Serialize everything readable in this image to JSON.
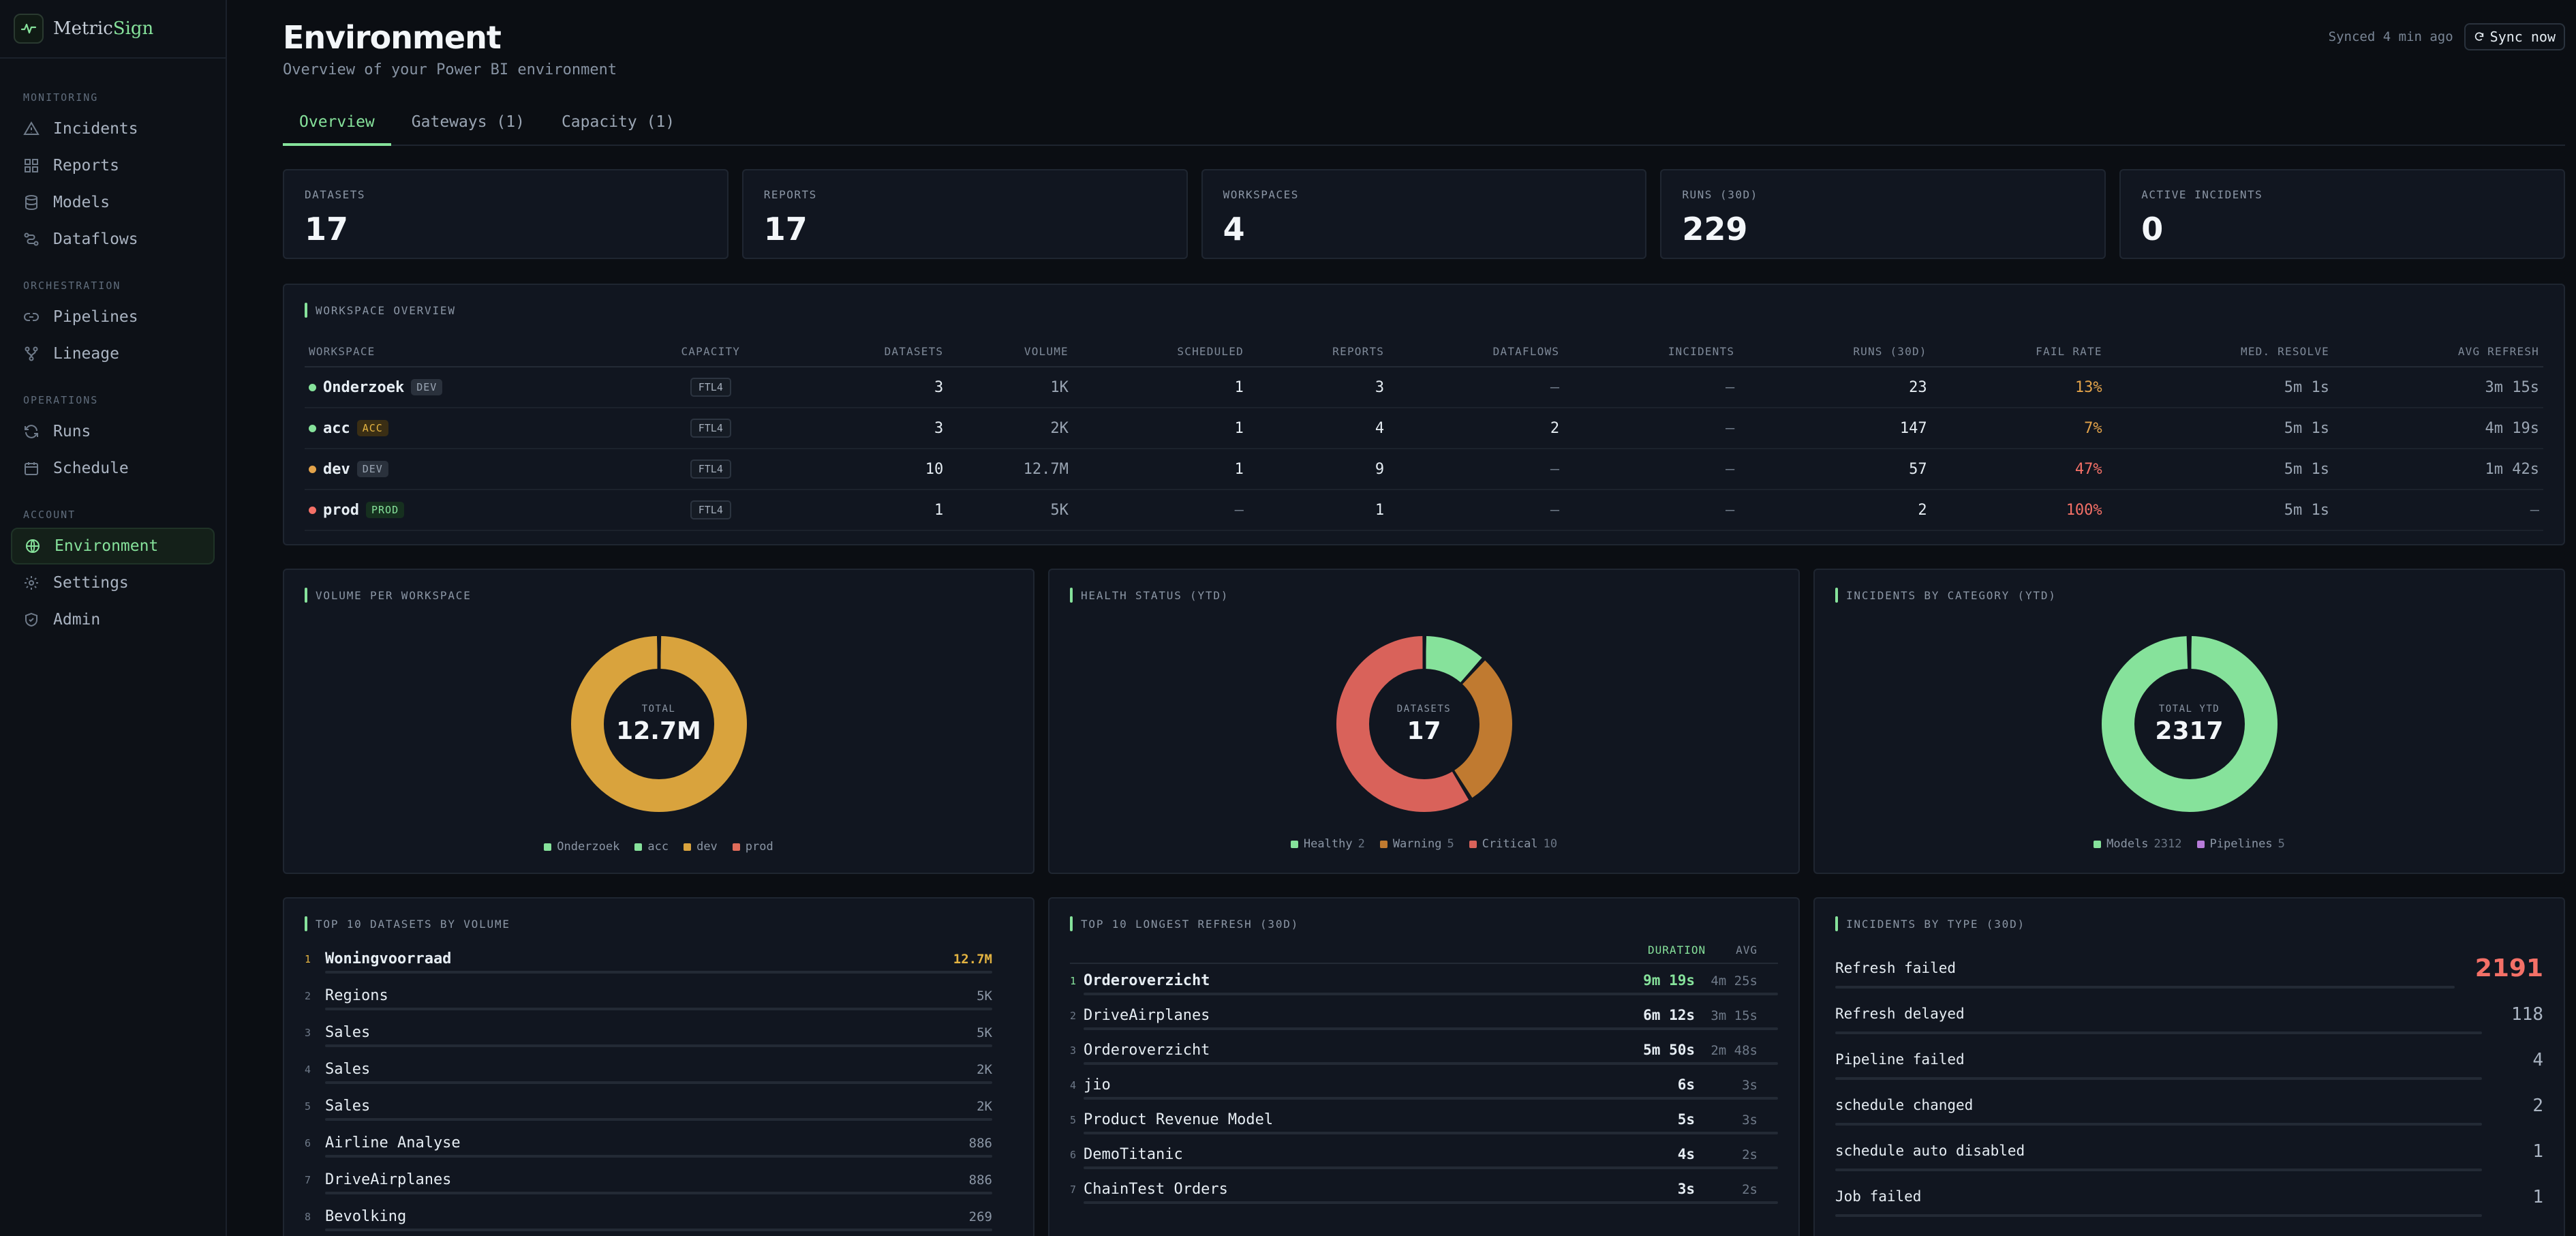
{
  "brand": {
    "name_prefix": "Metric",
    "name_accent": "Sign"
  },
  "sidebar": {
    "sections": [
      {
        "heading": "MONITORING",
        "items": [
          {
            "label": "Incidents",
            "icon": "alert-triangle-icon"
          },
          {
            "label": "Reports",
            "icon": "grid-icon"
          },
          {
            "label": "Models",
            "icon": "database-icon"
          },
          {
            "label": "Dataflows",
            "icon": "flow-icon"
          }
        ]
      },
      {
        "heading": "ORCHESTRATION",
        "items": [
          {
            "label": "Pipelines",
            "icon": "link-icon"
          },
          {
            "label": "Lineage",
            "icon": "branch-icon"
          }
        ]
      },
      {
        "heading": "OPERATIONS",
        "items": [
          {
            "label": "Runs",
            "icon": "refresh-icon"
          },
          {
            "label": "Schedule",
            "icon": "calendar-icon"
          }
        ]
      },
      {
        "heading": "ACCOUNT",
        "items": [
          {
            "label": "Environment",
            "icon": "globe-icon",
            "active": true
          },
          {
            "label": "Settings",
            "icon": "gear-icon"
          },
          {
            "label": "Admin",
            "icon": "shield-icon"
          }
        ]
      }
    ]
  },
  "header": {
    "title": "Environment",
    "subtitle": "Overview of your Power BI environment",
    "synced_text": "Synced 4 min ago",
    "sync_button": "Sync now"
  },
  "tabs": [
    {
      "label": "Overview",
      "active": true
    },
    {
      "label": "Gateways (1)"
    },
    {
      "label": "Capacity (1)"
    }
  ],
  "stats": [
    {
      "label": "DATASETS",
      "value": "17"
    },
    {
      "label": "REPORTS",
      "value": "17"
    },
    {
      "label": "WORKSPACES",
      "value": "4"
    },
    {
      "label": "RUNS (30D)",
      "value": "229"
    },
    {
      "label": "ACTIVE INCIDENTS",
      "value": "0"
    }
  ],
  "workspace_overview": {
    "title": "WORKSPACE OVERVIEW",
    "columns": [
      "WORKSPACE",
      "CAPACITY",
      "DATASETS",
      "VOLUME",
      "SCHEDULED",
      "REPORTS",
      "DATAFLOWS",
      "INCIDENTS",
      "RUNS (30D)",
      "FAIL RATE",
      "MED. RESOLVE",
      "AVG REFRESH"
    ],
    "rows": [
      {
        "name": "Onderzoek",
        "env": "DEV",
        "capacity": "FTL4",
        "datasets": "3",
        "volume": "1K",
        "scheduled": "1",
        "reports": "3",
        "dataflows": "—",
        "incidents": "—",
        "runs": "23",
        "fail_rate": "13%",
        "med_resolve": "5m 1s",
        "avg_refresh": "3m 15s"
      },
      {
        "name": "acc",
        "env": "ACC",
        "capacity": "FTL4",
        "datasets": "3",
        "volume": "2K",
        "scheduled": "1",
        "reports": "4",
        "dataflows": "2",
        "incidents": "—",
        "runs": "147",
        "fail_rate": "7%",
        "med_resolve": "5m 1s",
        "avg_refresh": "4m 19s"
      },
      {
        "name": "dev",
        "env": "DEV",
        "capacity": "FTL4",
        "datasets": "10",
        "volume": "12.7M",
        "scheduled": "1",
        "reports": "9",
        "dataflows": "—",
        "incidents": "—",
        "runs": "57",
        "fail_rate": "47%",
        "med_resolve": "5m 1s",
        "avg_refresh": "1m 42s"
      },
      {
        "name": "prod",
        "env": "PROD",
        "capacity": "FTL4",
        "datasets": "1",
        "volume": "5K",
        "scheduled": "—",
        "reports": "1",
        "dataflows": "—",
        "incidents": "—",
        "runs": "2",
        "fail_rate": "100%",
        "med_resolve": "5m 1s",
        "avg_refresh": "—"
      }
    ]
  },
  "colors": {
    "accent": "#86e29b",
    "warning": "#e3b341",
    "orange": "#c07a30",
    "critical": "#d9625a",
    "purple": "#b77bd9",
    "volume_gold": "#d9a33d",
    "dot_green": "#86e29b",
    "dot_orange": "#e3a34a",
    "dot_red": "#f47067"
  },
  "chart_data": [
    {
      "type": "pie",
      "title": "VOLUME PER WORKSPACE",
      "center_label": "TOTAL",
      "center_value": "12.7M",
      "series": [
        {
          "name": "Onderzoek",
          "value": 1000,
          "color": "#86e29b"
        },
        {
          "name": "acc",
          "value": 2000,
          "color": "#86e29b"
        },
        {
          "name": "dev",
          "value": 12700000,
          "color": "#d9a33d"
        },
        {
          "name": "prod",
          "value": 5000,
          "color": "#e06c5a"
        }
      ]
    },
    {
      "type": "pie",
      "title": "HEALTH STATUS (YTD)",
      "center_label": "DATASETS",
      "center_value": "17",
      "series": [
        {
          "name": "Healthy",
          "value": 2,
          "color": "#86e29b"
        },
        {
          "name": "Warning",
          "value": 5,
          "color": "#c07a30"
        },
        {
          "name": "Critical",
          "value": 10,
          "color": "#d9625a"
        }
      ]
    },
    {
      "type": "pie",
      "title": "INCIDENTS BY CATEGORY (YTD)",
      "center_label": "TOTAL YTD",
      "center_value": "2317",
      "series": [
        {
          "name": "Models",
          "value": 2312,
          "color": "#86e29b"
        },
        {
          "name": "Pipelines",
          "value": 5,
          "color": "#b77bd9"
        }
      ]
    }
  ],
  "top_datasets": {
    "title": "TOP 10 DATASETS BY VOLUME",
    "rows": [
      {
        "rank": "1",
        "name": "Woningvoorraad",
        "value": "12.7M"
      },
      {
        "rank": "2",
        "name": "Regions",
        "value": "5K"
      },
      {
        "rank": "3",
        "name": "Sales",
        "value": "5K"
      },
      {
        "rank": "4",
        "name": "Sales",
        "value": "2K"
      },
      {
        "rank": "5",
        "name": "Sales",
        "value": "2K"
      },
      {
        "rank": "6",
        "name": "Airline Analyse",
        "value": "886"
      },
      {
        "rank": "7",
        "name": "DriveAirplanes",
        "value": "886"
      },
      {
        "rank": "8",
        "name": "Bevolking",
        "value": "269"
      }
    ]
  },
  "longest_refresh": {
    "title": "TOP 10 LONGEST REFRESH (30D)",
    "col_duration": "DURATION",
    "col_avg": "AVG",
    "rows": [
      {
        "rank": "1",
        "name": "Orderoverzicht",
        "duration": "9m 19s",
        "avg": "4m 25s"
      },
      {
        "rank": "2",
        "name": "DriveAirplanes",
        "duration": "6m 12s",
        "avg": "3m 15s"
      },
      {
        "rank": "3",
        "name": "Orderoverzicht",
        "duration": "5m 50s",
        "avg": "2m 48s"
      },
      {
        "rank": "4",
        "name": "jio",
        "duration": "6s",
        "avg": "3s"
      },
      {
        "rank": "5",
        "name": "Product Revenue Model",
        "duration": "5s",
        "avg": "3s"
      },
      {
        "rank": "6",
        "name": "DemoTitanic",
        "duration": "4s",
        "avg": "2s"
      },
      {
        "rank": "7",
        "name": "ChainTest Orders",
        "duration": "3s",
        "avg": "2s"
      }
    ]
  },
  "incidents_by_type": {
    "title": "INCIDENTS BY TYPE (30D)",
    "rows": [
      {
        "name": "Refresh failed",
        "value": "2191"
      },
      {
        "name": "Refresh delayed",
        "value": "118"
      },
      {
        "name": "Pipeline failed",
        "value": "4"
      },
      {
        "name": "schedule changed",
        "value": "2"
      },
      {
        "name": "schedule auto disabled",
        "value": "1"
      },
      {
        "name": "Job failed",
        "value": "1"
      }
    ]
  }
}
